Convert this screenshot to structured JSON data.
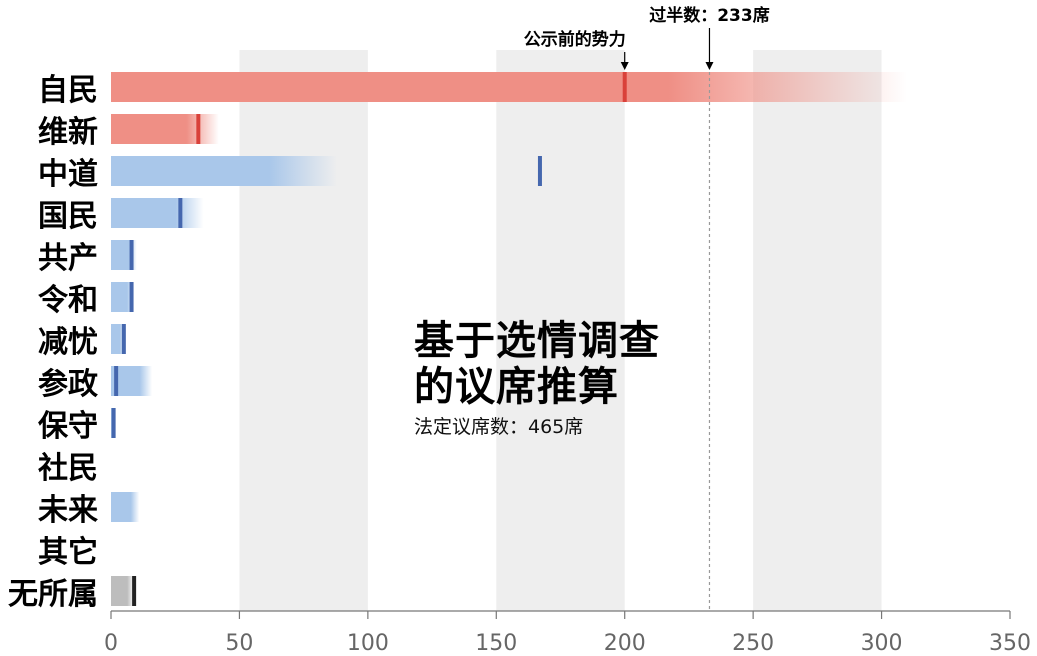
{
  "chart_data": {
    "type": "bar",
    "title_lines": [
      "基于选情调查",
      "的议席推算"
    ],
    "subtitle": "法定议席数：465席",
    "xlim": [
      0,
      350
    ],
    "x_ticks": [
      0,
      50,
      100,
      150,
      200,
      250,
      300,
      350
    ],
    "shaded_bands": [
      [
        50,
        100
      ],
      [
        150,
        200
      ],
      [
        250,
        300
      ]
    ],
    "majority": {
      "label": "过半数：233席",
      "value": 233
    },
    "pre_election_label": "公示前的势力",
    "parties": [
      {
        "name": "自民",
        "group": "ruling",
        "range": [
          0,
          310
        ],
        "pre": 200
      },
      {
        "name": "维新",
        "group": "ruling",
        "range": [
          0,
          42
        ],
        "pre": 34
      },
      {
        "name": "中道",
        "group": "opposition",
        "range": [
          0,
          88
        ],
        "pre": 167
      },
      {
        "name": "国民",
        "group": "opposition",
        "range": [
          0,
          36
        ],
        "pre": 27
      },
      {
        "name": "共产",
        "group": "opposition",
        "range": [
          0,
          10
        ],
        "pre": 8
      },
      {
        "name": "令和",
        "group": "opposition",
        "range": [
          0,
          9
        ],
        "pre": 8
      },
      {
        "name": "减忧",
        "group": "opposition",
        "range": [
          0,
          5
        ],
        "pre": 5
      },
      {
        "name": "参政",
        "group": "opposition",
        "range": [
          0,
          16
        ],
        "pre": 2
      },
      {
        "name": "保守",
        "group": "opposition",
        "range": [
          0,
          2
        ],
        "pre": 1
      },
      {
        "name": "社民",
        "group": "opposition",
        "range": null,
        "pre": null
      },
      {
        "name": "未来",
        "group": "opposition",
        "range": [
          0,
          11
        ],
        "pre": null
      },
      {
        "name": "其它",
        "group": "opposition",
        "range": null,
        "pre": null
      },
      {
        "name": "无所属",
        "group": "independent",
        "range": [
          0,
          9
        ],
        "pre": 9
      }
    ],
    "colors": {
      "ruling_bar": "#ef8f85",
      "ruling_marker": "#d9413a",
      "opposition_bar": "#a9c7ea",
      "opposition_marker": "#4567ae",
      "independent_bar": "#bdbdbd",
      "independent_marker": "#222222",
      "band": "#eeeeee",
      "majority_line": "#999999"
    }
  }
}
